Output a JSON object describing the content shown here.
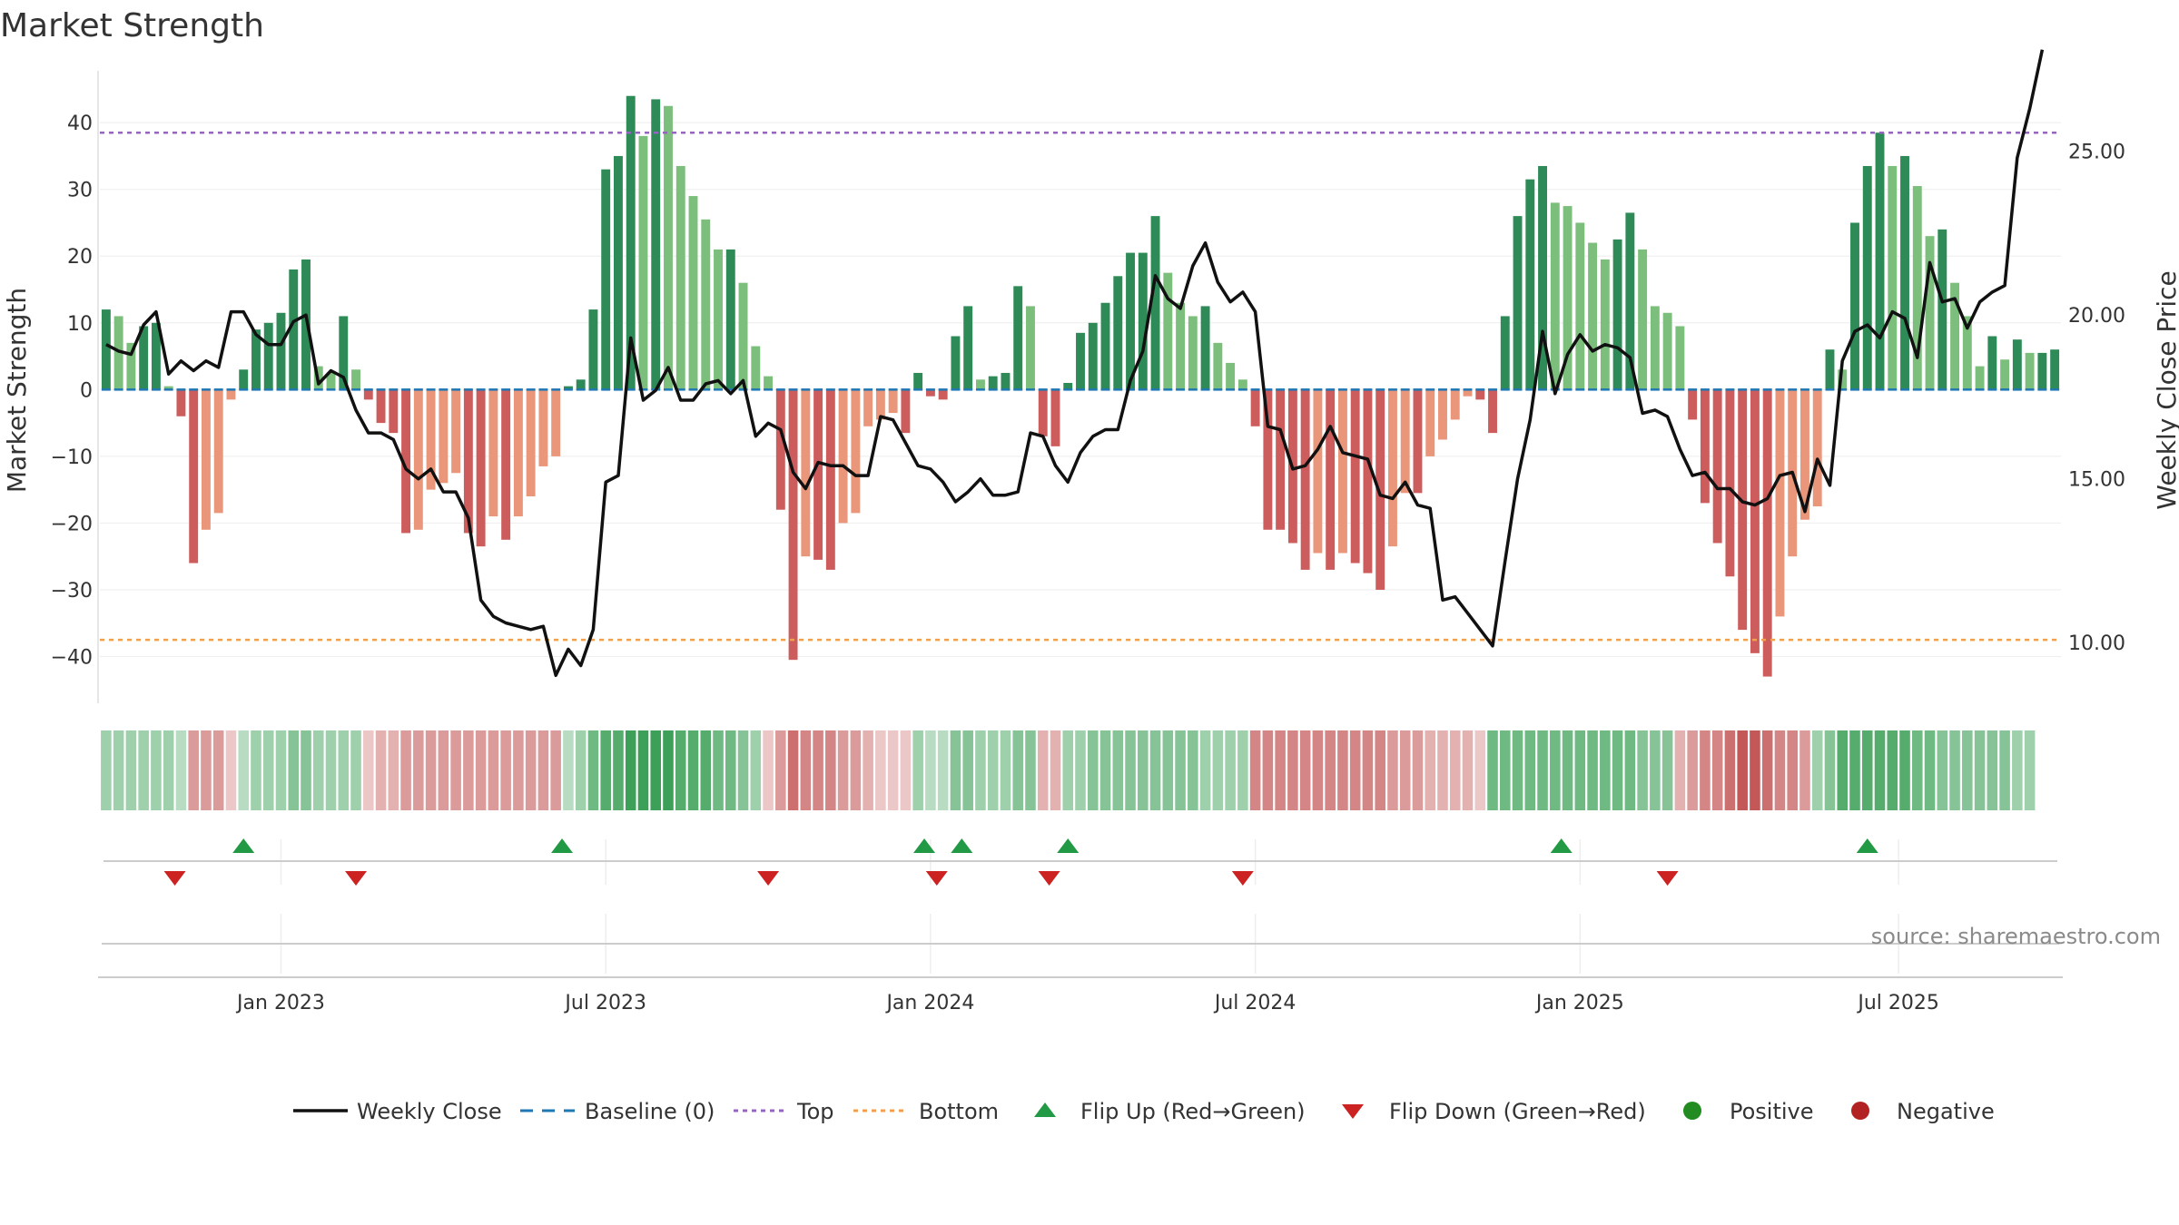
{
  "chart_data": {
    "type": "bar+line",
    "title": "Market Strength",
    "ylabel_left": "Market Strength",
    "ylabel_right": "Weekly Close Price",
    "source": "source: sharemaestro.com",
    "left_ticks": [
      "40",
      "30",
      "20",
      "10",
      "0",
      "−10",
      "−20",
      "−30",
      "−40"
    ],
    "left_tick_values": [
      40,
      30,
      20,
      10,
      0,
      -10,
      -20,
      -30,
      -40
    ],
    "right_ticks": [
      "25.00",
      "20.00",
      "15.00",
      "10.00"
    ],
    "right_tick_values": [
      25,
      20,
      15,
      10
    ],
    "x_ticks": [
      "Jan 2023",
      "Jul 2023",
      "Jan 2024",
      "Jul 2024",
      "Jan 2025",
      "Jul 2025"
    ],
    "x_tick_index": [
      14.5,
      40.5,
      66.5,
      92.5,
      118.5,
      144
    ],
    "thresholds": {
      "top": 38.5,
      "bottom": -37.5
    },
    "ylim_left": [
      -47,
      47.5
    ],
    "ylim_right": [
      8.15,
      27.4
    ],
    "strength": [
      12,
      11,
      7,
      9.5,
      10,
      0.5,
      -4,
      -26,
      -21,
      -18.5,
      -1.5,
      3,
      9,
      10,
      11.5,
      18,
      19.5,
      3.5,
      2.5,
      11,
      3,
      -1.5,
      -5,
      -6.5,
      -21.5,
      -21,
      -15,
      -14,
      -12.5,
      -21.5,
      -23.5,
      -19,
      -22.5,
      -19,
      -16,
      -11.5,
      -10,
      0.5,
      1.5,
      12,
      33,
      35,
      44,
      38,
      43.5,
      42.5,
      33.5,
      29,
      25.5,
      21,
      21,
      16,
      6.5,
      2,
      -18,
      -40.5,
      -25,
      -25.5,
      -27,
      -20,
      -18.5,
      -5.5,
      -4.5,
      -3.5,
      -6.5,
      2.5,
      -1,
      -1.5,
      8,
      12.5,
      1.5,
      2,
      2.5,
      15.5,
      12.5,
      -7,
      -8.5,
      1,
      8.5,
      10,
      13,
      17,
      20.5,
      20.5,
      26,
      17.5,
      13,
      11,
      12.5,
      7,
      4,
      1.5,
      -5.5,
      -21,
      -21,
      -23,
      -27,
      -24.5,
      -27,
      -24.5,
      -26,
      -27.5,
      -30,
      -23.5,
      -15.5,
      -15.5,
      -10,
      -7.5,
      -4.5,
      -1,
      -1.5,
      -6.5,
      11,
      26,
      31.5,
      33.5,
      28,
      27.5,
      25,
      22,
      19.5,
      22.5,
      26.5,
      21,
      12.5,
      11.5,
      9.5,
      -4.5,
      -17,
      -23,
      -28,
      -36,
      -39.5,
      -43,
      -34,
      -25,
      -19.5,
      -17.5,
      6,
      3,
      25,
      33.5,
      38.5,
      33.5,
      35,
      30.5,
      23,
      24,
      16,
      11,
      3.5,
      8,
      4.5,
      7.5,
      5.5,
      5.5,
      6
    ],
    "close": [
      19.1,
      18.9,
      18.8,
      19.7,
      20.1,
      18.2,
      18.6,
      18.3,
      18.6,
      18.4,
      20.1,
      20.1,
      19.4,
      19.1,
      19.1,
      19.8,
      20.0,
      17.9,
      18.3,
      18.1,
      17.1,
      16.4,
      16.4,
      16.2,
      15.3,
      15.0,
      15.3,
      14.6,
      14.6,
      13.8,
      11.3,
      10.8,
      10.6,
      10.5,
      10.4,
      10.5,
      9.0,
      9.8,
      9.3,
      10.4,
      14.9,
      15.1,
      19.3,
      17.4,
      17.7,
      18.4,
      17.4,
      17.4,
      17.9,
      18.0,
      17.6,
      18.0,
      16.3,
      16.7,
      16.5,
      15.2,
      14.7,
      15.5,
      15.4,
      15.4,
      15.1,
      15.1,
      16.9,
      16.8,
      16.1,
      15.4,
      15.3,
      14.9,
      14.3,
      14.6,
      15.0,
      14.5,
      14.5,
      14.6,
      16.4,
      16.3,
      15.4,
      14.9,
      15.8,
      16.3,
      16.5,
      16.5,
      18.0,
      18.9,
      21.2,
      20.5,
      20.2,
      21.5,
      22.2,
      21.0,
      20.4,
      20.7,
      20.1,
      16.6,
      16.5,
      15.3,
      15.4,
      15.9,
      16.6,
      15.8,
      15.7,
      15.6,
      14.5,
      14.4,
      14.9,
      14.2,
      14.1,
      11.3,
      11.4,
      10.9,
      10.4,
      9.9,
      12.5,
      15.0,
      16.8,
      19.5,
      17.6,
      18.8,
      19.4,
      18.9,
      19.1,
      19.0,
      18.7,
      17.0,
      17.1,
      16.9,
      15.9,
      15.1,
      15.2,
      14.7,
      14.7,
      14.3,
      14.2,
      14.4,
      15.1,
      15.2,
      14.0,
      15.6,
      14.8,
      18.6,
      19.5,
      19.7,
      19.3,
      20.1,
      19.9,
      18.7,
      21.6,
      20.4,
      20.5,
      19.6,
      20.4,
      20.7,
      20.9,
      24.8,
      26.3,
      28.1
    ],
    "heat_levels": [
      2,
      2,
      2,
      2,
      2,
      2,
      1,
      -3,
      -3,
      -3,
      -1,
      1,
      2,
      2,
      2,
      3,
      3,
      2,
      2,
      2,
      2,
      -1,
      -2,
      -2,
      -3,
      -3,
      -3,
      -3,
      -3,
      -3,
      -3,
      -3,
      -3,
      -3,
      -3,
      -3,
      -3,
      1,
      2,
      4,
      5,
      5,
      6,
      6,
      6,
      6,
      5,
      5,
      5,
      4,
      4,
      3,
      2,
      -1,
      -3,
      -5,
      -4,
      -4,
      -4,
      -3,
      -3,
      -2,
      -1,
      -1,
      -1,
      2,
      1,
      1,
      3,
      3,
      2,
      2,
      2,
      3,
      3,
      -2,
      -2,
      2,
      2,
      3,
      3,
      3,
      3,
      3,
      3,
      3,
      3,
      3,
      2,
      2,
      2,
      2,
      -4,
      -4,
      -4,
      -4,
      -4,
      -4,
      -4,
      -4,
      -4,
      -4,
      -4,
      -3,
      -3,
      -3,
      -2,
      -2,
      -2,
      -2,
      -1,
      4,
      4,
      4,
      4,
      4,
      4,
      4,
      4,
      4,
      4,
      4,
      4,
      3,
      3,
      3,
      -2,
      -3,
      -4,
      -4,
      -5,
      -6,
      -6,
      -5,
      -4,
      -4,
      -3,
      2,
      3,
      5,
      5,
      5,
      5,
      5,
      5,
      4,
      4,
      3,
      3,
      3,
      3,
      3,
      3,
      2,
      2
    ],
    "flips_up": [
      11.5,
      37,
      66,
      69,
      77.5,
      117,
      141.5
    ],
    "flips_down": [
      6,
      20.5,
      53.5,
      67,
      76,
      91.5,
      125.5
    ],
    "legend": [
      "Weekly Close",
      "Baseline (0)",
      "Top",
      "Bottom",
      "Flip Up (Red→Green)",
      "Flip Down (Green→Red)",
      "Positive",
      "Negative"
    ],
    "colors": {
      "strong_up": "#2e8b57",
      "weak_up": "#7cbf7c",
      "strong_down": "#cd5c5c",
      "weak_down": "#e9967a",
      "close": "#111111",
      "baseline": "#1f77b4",
      "top": "#9467bd",
      "bottom": "#f0a050",
      "flip_up": "#229944",
      "flip_down": "#cc2222",
      "positive": "#228b22",
      "negative": "#b22222"
    }
  }
}
